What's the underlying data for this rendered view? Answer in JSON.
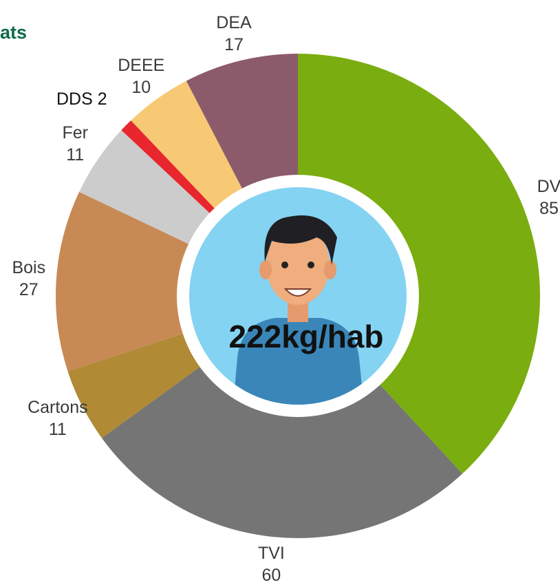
{
  "chart_data": {
    "type": "donut",
    "title": "ats",
    "center_label": "222kg/hab",
    "categories": [
      "DV",
      "TVI",
      "Cartons",
      "Bois",
      "Fer",
      "DDS",
      "DEEE",
      "DEA"
    ],
    "values": [
      85,
      60,
      11,
      27,
      11,
      2,
      10,
      17
    ],
    "colors": [
      "#7aad0f",
      "#757575",
      "#b08a35",
      "#c88a55",
      "#cccccc",
      "#e8262d",
      "#f8c975",
      "#8c5b6b"
    ]
  }
}
